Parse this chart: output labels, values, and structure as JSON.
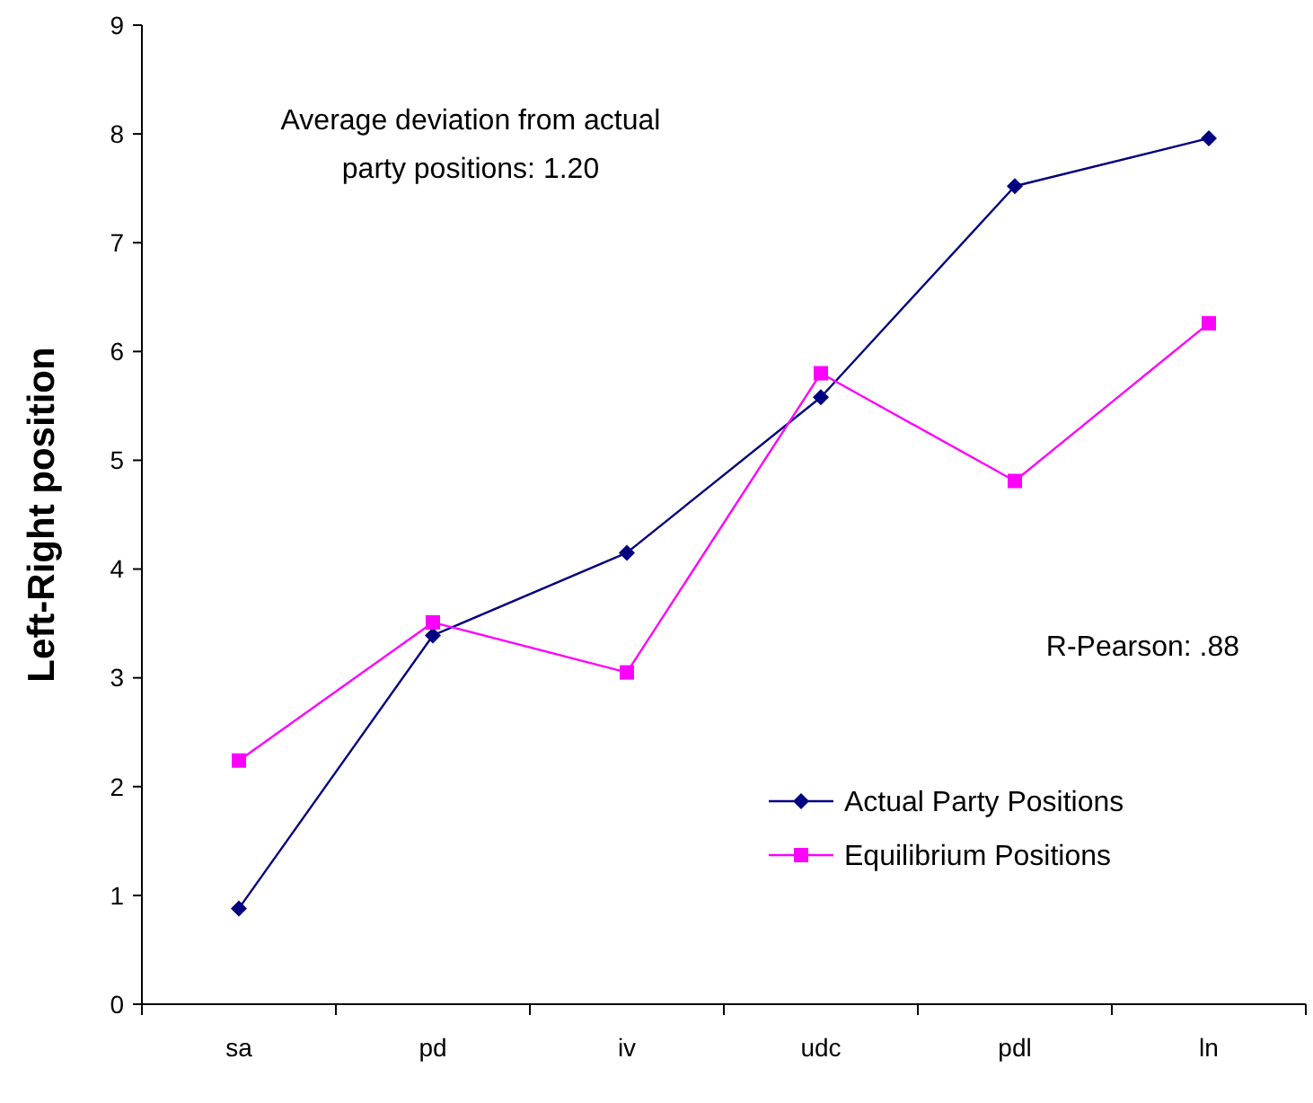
{
  "chart_data": {
    "type": "line",
    "ylabel": "Left-Right position",
    "categories": [
      "sa",
      "pd",
      "iv",
      "udc",
      "pdl",
      "ln"
    ],
    "series": [
      {
        "name": "Actual Party Positions",
        "color": "#000080",
        "marker": "diamond",
        "values": [
          0.88,
          3.39,
          4.15,
          5.58,
          7.52,
          7.96
        ]
      },
      {
        "name": "Equilibrium Positions",
        "color": "#ff00ff",
        "marker": "square",
        "values": [
          2.24,
          3.51,
          3.05,
          5.8,
          4.81,
          6.26
        ]
      }
    ],
    "ylim": [
      0,
      9
    ],
    "yticks": [
      0,
      1,
      2,
      3,
      4,
      5,
      6,
      7,
      8,
      9
    ],
    "grid": false,
    "legend": "bottom right",
    "annotations": [
      "Average deviation from actual\nparty positions: 1.20",
      "R-Pearson: .88"
    ]
  }
}
